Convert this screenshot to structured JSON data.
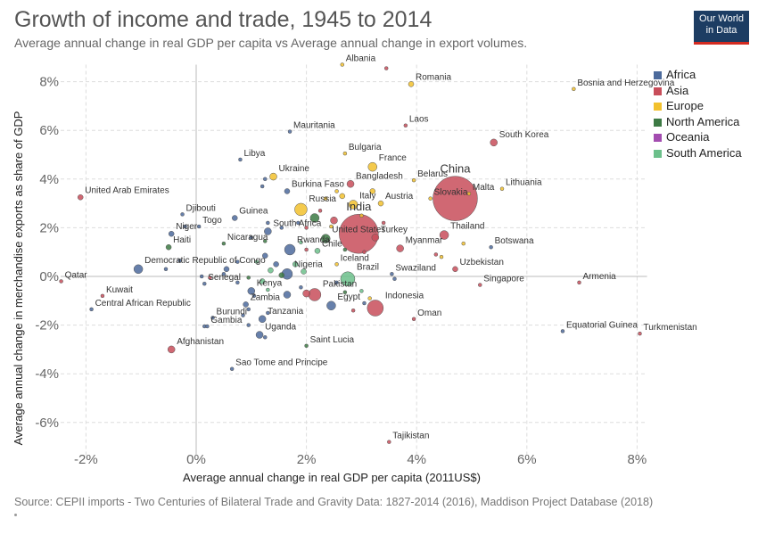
{
  "title": "Growth of income and trade, 1945 to 2014",
  "subtitle": "Average annual change in real GDP per capita vs Average annual change in export volumes.",
  "logo": {
    "line1": "Our World",
    "line2": "in Data"
  },
  "source": "Source: CEPII imports - Two Centuries of Bilateral Trade and Gravity Data: 1827-2014 (2016), Maddison Project Database (2018)",
  "legend": [
    {
      "name": "Africa",
      "color": "#4C6A9C"
    },
    {
      "name": "Asia",
      "color": "#C84E5A"
    },
    {
      "name": "Europe",
      "color": "#F2C12E"
    },
    {
      "name": "North America",
      "color": "#3D7A44"
    },
    {
      "name": "Oceania",
      "color": "#A34DB0"
    },
    {
      "name": "South America",
      "color": "#6CC08B"
    }
  ],
  "chart_data": {
    "type": "scatter",
    "title": "Growth of income and trade, 1945 to 2014",
    "xlabel": "Average annual change in real GDP per capita (2011US$)",
    "ylabel": "Average annual change in merchandise exports as share of GDP",
    "xlim": [
      -2.5,
      8.1
    ],
    "ylim": [
      -7,
      8.7
    ],
    "x_ticks": [
      -2,
      0,
      2,
      4,
      6,
      8
    ],
    "x_tick_labels": [
      "-2%",
      "0%",
      "2%",
      "4%",
      "6%",
      "8%"
    ],
    "y_ticks": [
      -6,
      -4,
      -2,
      0,
      2,
      4,
      6,
      8
    ],
    "y_tick_labels": [
      "-6%",
      "-4%",
      "-2%",
      "0%",
      "2%",
      "4%",
      "6%",
      "8%"
    ],
    "grid": true,
    "legend_position": "right",
    "points": [
      {
        "label": "Albania",
        "x": 2.65,
        "y": 8.7,
        "region": "Europe",
        "size": 2
      },
      {
        "label": "Romania",
        "x": 3.9,
        "y": 7.9,
        "region": "Europe",
        "size": 3
      },
      {
        "label": "Bosnia and Herzegovina",
        "x": 6.85,
        "y": 7.7,
        "region": "Europe",
        "size": 2
      },
      {
        "label": "Laos",
        "x": 3.8,
        "y": 6.2,
        "region": "Asia",
        "size": 2
      },
      {
        "label": "Mauritania",
        "x": 1.7,
        "y": 5.95,
        "region": "Africa",
        "size": 2
      },
      {
        "label": "South Korea",
        "x": 5.4,
        "y": 5.5,
        "region": "Asia",
        "size": 4
      },
      {
        "label": "Bulgaria",
        "x": 2.7,
        "y": 5.05,
        "region": "Europe",
        "size": 2
      },
      {
        "label": "Libya",
        "x": 0.8,
        "y": 4.8,
        "region": "Africa",
        "size": 2
      },
      {
        "label": "France",
        "x": 3.2,
        "y": 4.5,
        "region": "Europe",
        "size": 5
      },
      {
        "label": "Ukraine",
        "x": 1.4,
        "y": 4.1,
        "region": "Europe",
        "size": 4
      },
      {
        "label": "Belarus",
        "x": 3.95,
        "y": 3.95,
        "region": "Europe",
        "size": 2
      },
      {
        "label": "Bangladesh",
        "x": 2.8,
        "y": 3.8,
        "region": "Asia",
        "size": 4
      },
      {
        "label": "Burkina Faso",
        "x": 1.65,
        "y": 3.5,
        "region": "Africa",
        "size": 3
      },
      {
        "label": "China",
        "x": 4.7,
        "y": 3.2,
        "region": "Asia",
        "size": 25
      },
      {
        "label": "Slovakia",
        "x": 4.25,
        "y": 3.2,
        "region": "Europe",
        "size": 2
      },
      {
        "label": "Malta",
        "x": 4.95,
        "y": 3.4,
        "region": "Europe",
        "size": 2
      },
      {
        "label": "Lithuania",
        "x": 5.55,
        "y": 3.6,
        "region": "Europe",
        "size": 2
      },
      {
        "label": "United Arab Emirates",
        "x": -2.1,
        "y": 3.25,
        "region": "Asia",
        "size": 3
      },
      {
        "label": "Italy",
        "x": 2.85,
        "y": 2.95,
        "region": "Europe",
        "size": 5
      },
      {
        "label": "Russia",
        "x": 1.9,
        "y": 2.75,
        "region": "Europe",
        "size": 7
      },
      {
        "label": "Austria",
        "x": 3.35,
        "y": 3.0,
        "region": "Europe",
        "size": 3
      },
      {
        "label": "Djibouti",
        "x": -0.25,
        "y": 2.55,
        "region": "Africa",
        "size": 2
      },
      {
        "label": "Guinea",
        "x": 0.7,
        "y": 2.4,
        "region": "Africa",
        "size": 3
      },
      {
        "label": "India",
        "x": 2.95,
        "y": 1.75,
        "region": "Asia",
        "size": 22
      },
      {
        "label": "Togo",
        "x": 0.05,
        "y": 2.05,
        "region": "Africa",
        "size": 2
      },
      {
        "label": "South Africa",
        "x": 1.3,
        "y": 1.85,
        "region": "Africa",
        "size": 4
      },
      {
        "label": "Niger",
        "x": -0.45,
        "y": 1.75,
        "region": "Africa",
        "size": 3
      },
      {
        "label": "Thailand",
        "x": 4.5,
        "y": 1.7,
        "region": "Asia",
        "size": 5
      },
      {
        "label": "Turkey",
        "x": 3.25,
        "y": 1.6,
        "region": "Asia",
        "size": 4
      },
      {
        "label": "United States",
        "x": 2.35,
        "y": 1.55,
        "region": "North America",
        "size": 5
      },
      {
        "label": "Nicaragua",
        "x": 0.5,
        "y": 1.35,
        "region": "North America",
        "size": 2
      },
      {
        "label": "Haiti",
        "x": -0.5,
        "y": 1.2,
        "region": "North America",
        "size": 3
      },
      {
        "label": "Myanmar",
        "x": 3.7,
        "y": 1.15,
        "region": "Asia",
        "size": 4
      },
      {
        "label": "Rwanda",
        "x": 1.7,
        "y": 1.1,
        "region": "Africa",
        "size": 6
      },
      {
        "label": "Chile",
        "x": 2.2,
        "y": 1.05,
        "region": "South America",
        "size": 3
      },
      {
        "label": "Botswana",
        "x": 5.35,
        "y": 1.2,
        "region": "Africa",
        "size": 2
      },
      {
        "label": "Democratic Republic of Congo",
        "x": -1.05,
        "y": 0.3,
        "region": "Africa",
        "size": 5
      },
      {
        "label": "Iceland",
        "x": 2.55,
        "y": 0.5,
        "region": "Europe",
        "size": 2
      },
      {
        "label": "Uzbekistan",
        "x": 4.7,
        "y": 0.3,
        "region": "Asia",
        "size": 3
      },
      {
        "label": "Nigeria",
        "x": 1.65,
        "y": 0.1,
        "region": "Africa",
        "size": 6
      },
      {
        "label": "Brazil",
        "x": 2.75,
        "y": -0.1,
        "region": "South America",
        "size": 8
      },
      {
        "label": "Swaziland",
        "x": 3.55,
        "y": 0.1,
        "region": "Africa",
        "size": 2
      },
      {
        "label": "Qatar",
        "x": -2.45,
        "y": -0.2,
        "region": "Asia",
        "size": 2
      },
      {
        "label": "Senegal",
        "x": 0.15,
        "y": -0.3,
        "region": "Africa",
        "size": 2
      },
      {
        "label": "Singapore",
        "x": 5.15,
        "y": -0.35,
        "region": "Asia",
        "size": 2
      },
      {
        "label": "Armenia",
        "x": 6.95,
        "y": -0.25,
        "region": "Asia",
        "size": 2
      },
      {
        "label": "Kenya",
        "x": 1.0,
        "y": -0.6,
        "region": "Africa",
        "size": 4
      },
      {
        "label": "Pakistan",
        "x": 2.15,
        "y": -0.75,
        "region": "Asia",
        "size": 7
      },
      {
        "label": "Kuwait",
        "x": -1.7,
        "y": -0.8,
        "region": "Asia",
        "size": 2
      },
      {
        "label": "Zambia",
        "x": 0.9,
        "y": -1.15,
        "region": "Africa",
        "size": 3
      },
      {
        "label": "Egypt",
        "x": 2.45,
        "y": -1.2,
        "region": "Africa",
        "size": 5
      },
      {
        "label": "Indonesia",
        "x": 3.25,
        "y": -1.3,
        "region": "Asia",
        "size": 9
      },
      {
        "label": "Central African Republic",
        "x": -1.9,
        "y": -1.35,
        "region": "Africa",
        "size": 2
      },
      {
        "label": "Tanzania",
        "x": 1.2,
        "y": -1.75,
        "region": "Africa",
        "size": 4
      },
      {
        "label": "Burundi",
        "x": 0.3,
        "y": -1.7,
        "region": "Africa",
        "size": 2
      },
      {
        "label": "Gambia",
        "x": 0.2,
        "y": -2.05,
        "region": "Africa",
        "size": 2
      },
      {
        "label": "Oman",
        "x": 3.95,
        "y": -1.75,
        "region": "Asia",
        "size": 2
      },
      {
        "label": "Equatorial Guinea",
        "x": 6.65,
        "y": -2.25,
        "region": "Africa",
        "size": 2
      },
      {
        "label": "Turkmenistan",
        "x": 8.05,
        "y": -2.35,
        "region": "Asia",
        "size": 2
      },
      {
        "label": "Uganda",
        "x": 1.15,
        "y": -2.4,
        "region": "Africa",
        "size": 4
      },
      {
        "label": "Saint Lucia",
        "x": 2.0,
        "y": -2.85,
        "region": "North America",
        "size": 2
      },
      {
        "label": "Afghanistan",
        "x": -0.45,
        "y": -3.0,
        "region": "Asia",
        "size": 4
      },
      {
        "label": "Sao Tome and Principe",
        "x": 0.65,
        "y": -3.8,
        "region": "Africa",
        "size": 2
      },
      {
        "label": "Tajikistan",
        "x": 3.5,
        "y": -6.8,
        "region": "Asia",
        "size": 2
      }
    ],
    "unlabeled_points": [
      {
        "x": 3.45,
        "y": 8.55,
        "region": "Asia",
        "size": 2
      },
      {
        "x": 1.25,
        "y": 4.0,
        "region": "Africa",
        "size": 2
      },
      {
        "x": 1.2,
        "y": 3.7,
        "region": "Africa",
        "size": 2
      },
      {
        "x": 2.65,
        "y": 3.3,
        "region": "Europe",
        "size": 3
      },
      {
        "x": 2.35,
        "y": 3.2,
        "region": "Europe",
        "size": 2
      },
      {
        "x": 2.55,
        "y": 3.5,
        "region": "Europe",
        "size": 2
      },
      {
        "x": 3.2,
        "y": 3.5,
        "region": "Europe",
        "size": 3
      },
      {
        "x": 2.25,
        "y": 2.7,
        "region": "Asia",
        "size": 2
      },
      {
        "x": 3.0,
        "y": 2.5,
        "region": "Europe",
        "size": 2
      },
      {
        "x": 2.15,
        "y": 2.4,
        "region": "North America",
        "size": 5
      },
      {
        "x": 2.5,
        "y": 2.3,
        "region": "Asia",
        "size": 4
      },
      {
        "x": 1.3,
        "y": 2.2,
        "region": "Africa",
        "size": 2
      },
      {
        "x": 1.55,
        "y": 2.0,
        "region": "Africa",
        "size": 2
      },
      {
        "x": 1.85,
        "y": 2.2,
        "region": "Africa",
        "size": 2
      },
      {
        "x": 2.0,
        "y": 2.0,
        "region": "Asia",
        "size": 2
      },
      {
        "x": 2.45,
        "y": 2.05,
        "region": "Europe",
        "size": 2
      },
      {
        "x": 3.4,
        "y": 2.2,
        "region": "Asia",
        "size": 2
      },
      {
        "x": -0.2,
        "y": 2.05,
        "region": "Africa",
        "size": 2
      },
      {
        "x": 1.0,
        "y": 1.6,
        "region": "Africa",
        "size": 2
      },
      {
        "x": 1.25,
        "y": 1.45,
        "region": "North America",
        "size": 2
      },
      {
        "x": 1.9,
        "y": 1.4,
        "region": "South America",
        "size": 2
      },
      {
        "x": 2.0,
        "y": 1.1,
        "region": "Asia",
        "size": 2
      },
      {
        "x": 2.7,
        "y": 1.1,
        "region": "North America",
        "size": 2
      },
      {
        "x": 3.05,
        "y": 1.0,
        "region": "Asia",
        "size": 2
      },
      {
        "x": 4.35,
        "y": 0.9,
        "region": "Asia",
        "size": 2
      },
      {
        "x": 4.45,
        "y": 0.8,
        "region": "Europe",
        "size": 2
      },
      {
        "x": 4.85,
        "y": 1.35,
        "region": "Europe",
        "size": 2
      },
      {
        "x": 1.25,
        "y": 0.85,
        "region": "Africa",
        "size": 3
      },
      {
        "x": 1.45,
        "y": 0.5,
        "region": "Africa",
        "size": 3
      },
      {
        "x": 1.1,
        "y": 0.6,
        "region": "South America",
        "size": 2
      },
      {
        "x": 1.8,
        "y": 0.5,
        "region": "South America",
        "size": 3
      },
      {
        "x": 0.75,
        "y": 0.6,
        "region": "Africa",
        "size": 2
      },
      {
        "x": 0.55,
        "y": 0.3,
        "region": "Africa",
        "size": 3
      },
      {
        "x": 1.35,
        "y": 0.25,
        "region": "South America",
        "size": 3
      },
      {
        "x": 1.55,
        "y": 0.05,
        "region": "North America",
        "size": 3
      },
      {
        "x": 1.95,
        "y": 0.2,
        "region": "South America",
        "size": 3
      },
      {
        "x": -0.55,
        "y": 0.3,
        "region": "Africa",
        "size": 2
      },
      {
        "x": -0.3,
        "y": 0.65,
        "region": "Africa",
        "size": 2
      },
      {
        "x": 0.25,
        "y": -0.05,
        "region": "Asia",
        "size": 2
      },
      {
        "x": 0.1,
        "y": 0.0,
        "region": "Africa",
        "size": 2
      },
      {
        "x": 0.5,
        "y": 0.1,
        "region": "Africa",
        "size": 2
      },
      {
        "x": 0.75,
        "y": -0.25,
        "region": "Africa",
        "size": 2
      },
      {
        "x": 0.95,
        "y": -0.05,
        "region": "North America",
        "size": 2
      },
      {
        "x": 1.2,
        "y": -0.2,
        "region": "South America",
        "size": 3
      },
      {
        "x": 1.3,
        "y": -0.55,
        "region": "South America",
        "size": 2
      },
      {
        "x": 1.65,
        "y": -0.75,
        "region": "Africa",
        "size": 4
      },
      {
        "x": 1.9,
        "y": -0.45,
        "region": "Africa",
        "size": 2
      },
      {
        "x": 2.0,
        "y": -0.7,
        "region": "Asia",
        "size": 4
      },
      {
        "x": 2.55,
        "y": -0.25,
        "region": "Africa",
        "size": 2
      },
      {
        "x": 2.7,
        "y": -0.65,
        "region": "North America",
        "size": 2
      },
      {
        "x": 3.0,
        "y": -0.6,
        "region": "South America",
        "size": 2
      },
      {
        "x": 3.15,
        "y": -0.9,
        "region": "Europe",
        "size": 2
      },
      {
        "x": 2.85,
        "y": -1.4,
        "region": "Asia",
        "size": 2
      },
      {
        "x": 3.05,
        "y": -1.1,
        "region": "Africa",
        "size": 2
      },
      {
        "x": 0.95,
        "y": -1.35,
        "region": "Africa",
        "size": 2
      },
      {
        "x": 1.05,
        "y": -0.8,
        "region": "Africa",
        "size": 2
      },
      {
        "x": 0.85,
        "y": -1.6,
        "region": "Africa",
        "size": 2
      },
      {
        "x": 1.3,
        "y": -1.5,
        "region": "Africa",
        "size": 2
      },
      {
        "x": 0.15,
        "y": -2.05,
        "region": "Africa",
        "size": 2
      },
      {
        "x": 0.95,
        "y": -2.0,
        "region": "Africa",
        "size": 2
      },
      {
        "x": 1.25,
        "y": -2.5,
        "region": "Africa",
        "size": 2
      },
      {
        "x": 3.6,
        "y": -0.1,
        "region": "Africa",
        "size": 2
      }
    ]
  }
}
